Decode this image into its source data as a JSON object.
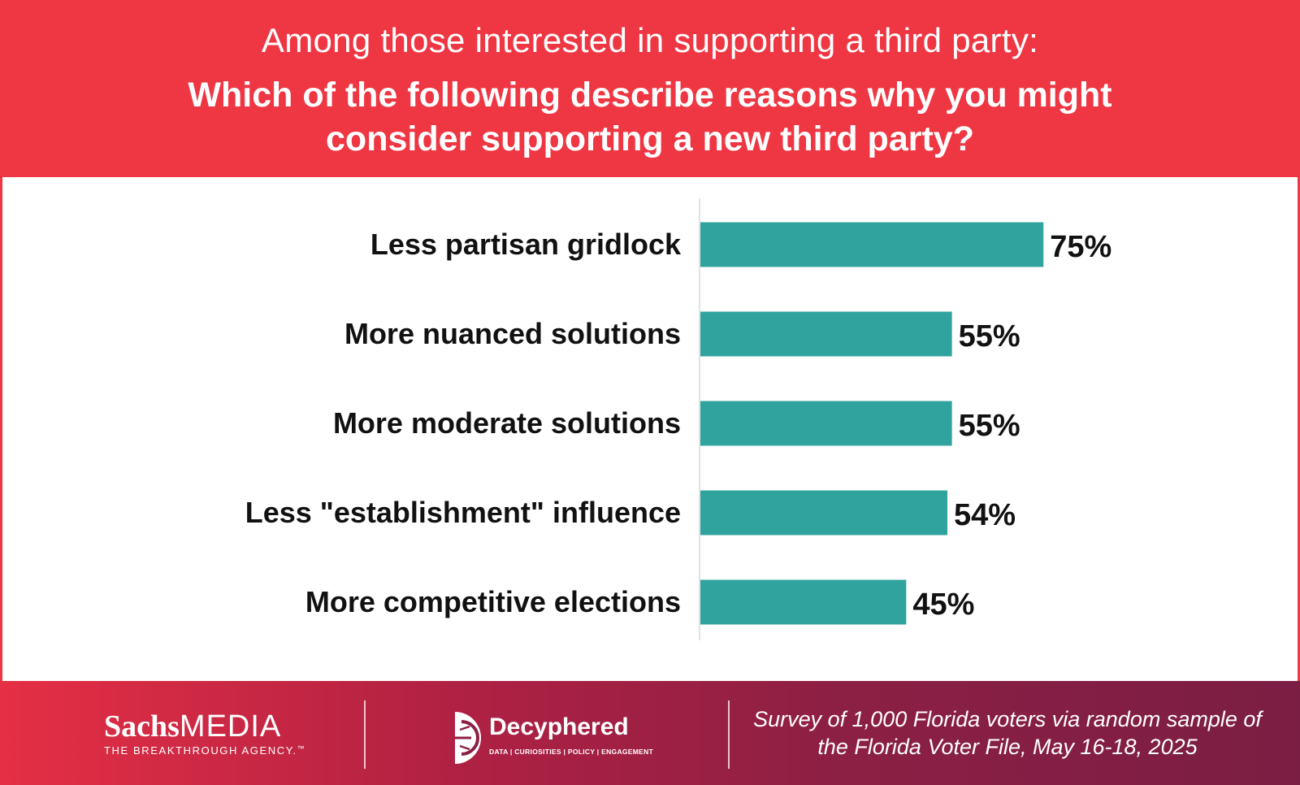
{
  "header": {
    "subtitle": "Among those interested in supporting a third party:",
    "title": "Which of the following describe reasons why you might consider supporting a new third party?"
  },
  "chart_data": {
    "type": "bar",
    "orientation": "horizontal",
    "categories": [
      "Less partisan gridlock",
      "More nuanced solutions",
      "More moderate solutions",
      "Less \"establishment\" influence",
      "More competitive elections"
    ],
    "values": [
      75,
      55,
      55,
      54,
      45
    ],
    "value_labels": [
      "75%",
      "55%",
      "55%",
      "54%",
      "45%"
    ],
    "xlim": [
      0,
      100
    ],
    "bar_color": "#31a39f",
    "grid": false,
    "legend": "none"
  },
  "footer": {
    "sachs_bold": "Sachs",
    "sachs_light": "MEDIA",
    "sachs_tagline": "THE BREAKTHROUGH AGENCY.",
    "sachs_tm": "™",
    "decyphered_name": "Decyphered",
    "decyphered_tagline": "DATA | CURIOSITIES | POLICY | ENGAGEMENT",
    "decyphered_icon": "decyphered-logo-icon",
    "source": "Survey of 1,000 Florida voters via random sample of the Florida Voter File, May 16-18, 2025"
  },
  "colors": {
    "header_bg": "#ef3643",
    "footer_start": "#e52f44",
    "footer_end": "#7b1e43",
    "text_dark": "#111111"
  }
}
